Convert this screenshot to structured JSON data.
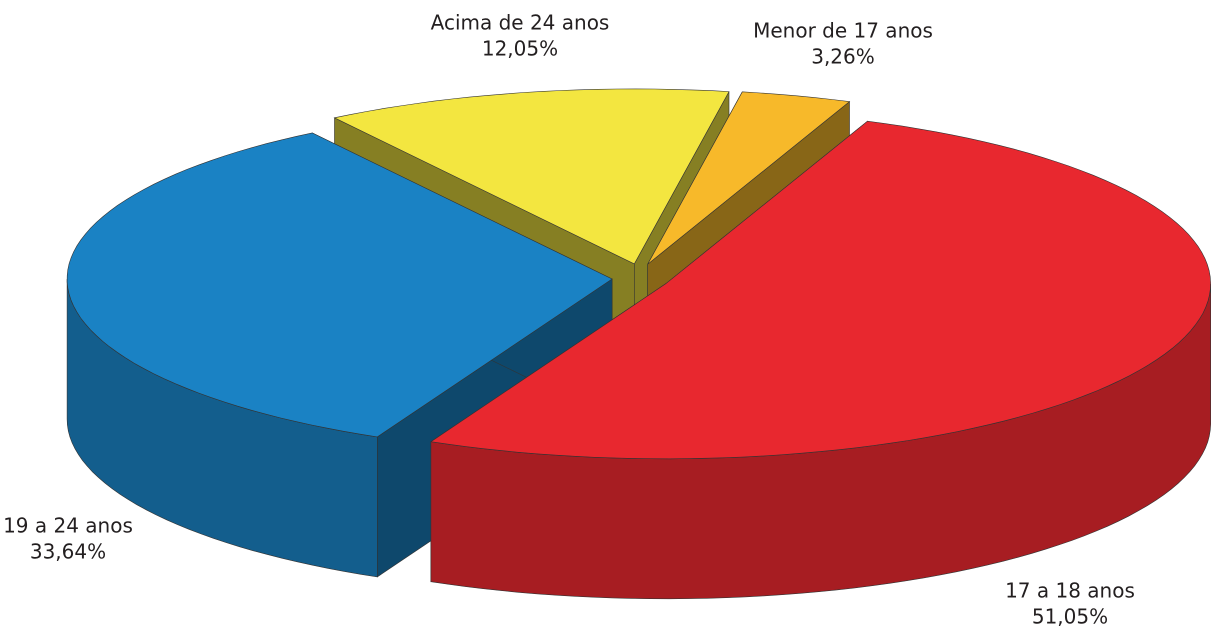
{
  "chart_data": {
    "type": "pie3d",
    "categories": [
      "Menor de 17 anos",
      "17 a 18 anos",
      "19 a 24 anos",
      "Acima de 24 anos"
    ],
    "values": [
      3.26,
      51.05,
      33.64,
      12.05
    ],
    "value_labels": [
      "3,26%",
      "51,05%",
      "33,64%",
      "12,05%"
    ],
    "colors": [
      "#f7b92a",
      "#e8282f",
      "#1a82c4",
      "#f3e640"
    ]
  }
}
